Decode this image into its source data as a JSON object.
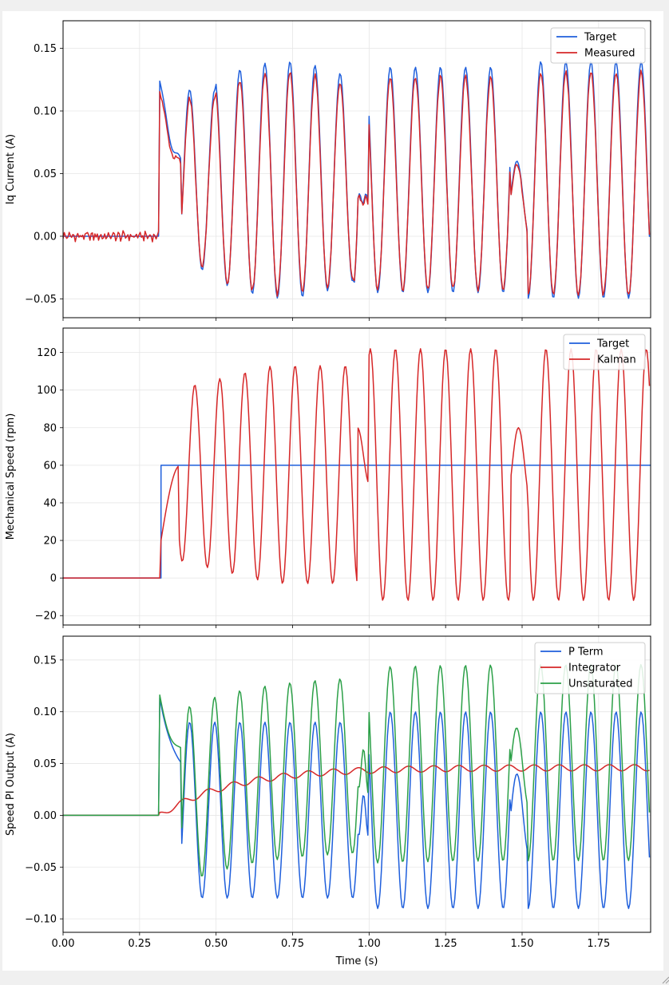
{
  "chart_data": [
    {
      "type": "line",
      "ylabel": "Iq Current (A)",
      "xlim": [
        0,
        1.92
      ],
      "ylim": [
        -0.065,
        0.172
      ],
      "yticks": [
        "0.15",
        "0.10",
        "0.05",
        "0.00",
        "−0.05"
      ],
      "ytick_values": [
        0.15,
        0.1,
        0.05,
        0.0,
        -0.05
      ],
      "grid": true,
      "legend": "top-right",
      "series": [
        {
          "name": "Target",
          "color": "#1f5fdc",
          "waveform": "target_iq"
        },
        {
          "name": "Measured",
          "color": "#d62728",
          "waveform": "measured_iq"
        }
      ],
      "step_time": 0.31,
      "sample_points": [
        {
          "t": 0.0,
          "target": 0.0,
          "measured": 0.003
        },
        {
          "t": 0.31,
          "target": 0.0,
          "measured": 0.002
        },
        {
          "t": 0.32,
          "target": 0.09,
          "measured": 0.083
        },
        {
          "t": 0.38,
          "target": 0.104,
          "measured": 0.1
        },
        {
          "t": 0.61,
          "target": 0.137,
          "measured": 0.13
        },
        {
          "t": 1.03,
          "target": 0.15,
          "measured": 0.148
        },
        {
          "t": 1.7,
          "target": -0.055,
          "measured": -0.047
        }
      ]
    },
    {
      "type": "line",
      "ylabel": "Mechanical Speed (rpm)",
      "xlim": [
        0,
        1.92
      ],
      "ylim": [
        -25,
        133
      ],
      "yticks": [
        "120",
        "100",
        "80",
        "60",
        "40",
        "20",
        "0",
        "−20"
      ],
      "ytick_values": [
        120,
        100,
        80,
        60,
        40,
        20,
        0,
        -20
      ],
      "grid": true,
      "legend": "top-right",
      "series": [
        {
          "name": "Target",
          "color": "#1f5fdc",
          "waveform": "target_speed"
        },
        {
          "name": "Kalman",
          "color": "#d62728",
          "waveform": "kalman_speed"
        }
      ],
      "target_step": {
        "t": 0.32,
        "value": 60
      },
      "sample_points": [
        {
          "t": 0.0,
          "kalman": 0
        },
        {
          "t": 0.36,
          "kalman": 62
        },
        {
          "t": 0.42,
          "kalman": 88
        },
        {
          "t": 0.78,
          "kalman": 115
        },
        {
          "t": 1.06,
          "kalman": -15
        },
        {
          "t": 1.32,
          "kalman": 123
        },
        {
          "t": 1.58,
          "kalman": 125
        },
        {
          "t": 1.63,
          "kalman": -18
        }
      ]
    },
    {
      "type": "line",
      "ylabel": "Speed PI Output (A)",
      "xlabel": "Time (s)",
      "xlim": [
        0,
        1.92
      ],
      "ylim": [
        -0.113,
        0.173
      ],
      "xticks": [
        "0.00",
        "0.25",
        "0.50",
        "0.75",
        "1.00",
        "1.25",
        "1.50",
        "1.75"
      ],
      "xtick_values": [
        0.0,
        0.25,
        0.5,
        0.75,
        1.0,
        1.25,
        1.5,
        1.75
      ],
      "yticks": [
        "0.15",
        "0.10",
        "0.05",
        "0.00",
        "−0.05",
        "−0.10"
      ],
      "ytick_values": [
        0.15,
        0.1,
        0.05,
        0.0,
        -0.05,
        -0.1
      ],
      "grid": true,
      "legend": "top-right",
      "series": [
        {
          "name": "P Term",
          "color": "#1f5fdc",
          "waveform": "p_term"
        },
        {
          "name": "Integrator",
          "color": "#d62728",
          "waveform": "integrator"
        },
        {
          "name": "Unsaturated",
          "color": "#2ca048",
          "waveform": "unsaturated"
        }
      ],
      "sample_points": [
        {
          "t": 0.31,
          "p": 0.0,
          "integrator": 0.0,
          "unsat": 0.0
        },
        {
          "t": 0.32,
          "p": 0.087,
          "integrator": 0.002,
          "unsat": 0.09
        },
        {
          "t": 0.6,
          "p": -0.078,
          "integrator": 0.03,
          "unsat": 0.15
        },
        {
          "t": 1.04,
          "p": -0.08,
          "integrator": 0.037,
          "unsat": 0.155
        },
        {
          "t": 1.7,
          "p": -0.1,
          "integrator": 0.046,
          "unsat": 0.14
        }
      ]
    }
  ]
}
